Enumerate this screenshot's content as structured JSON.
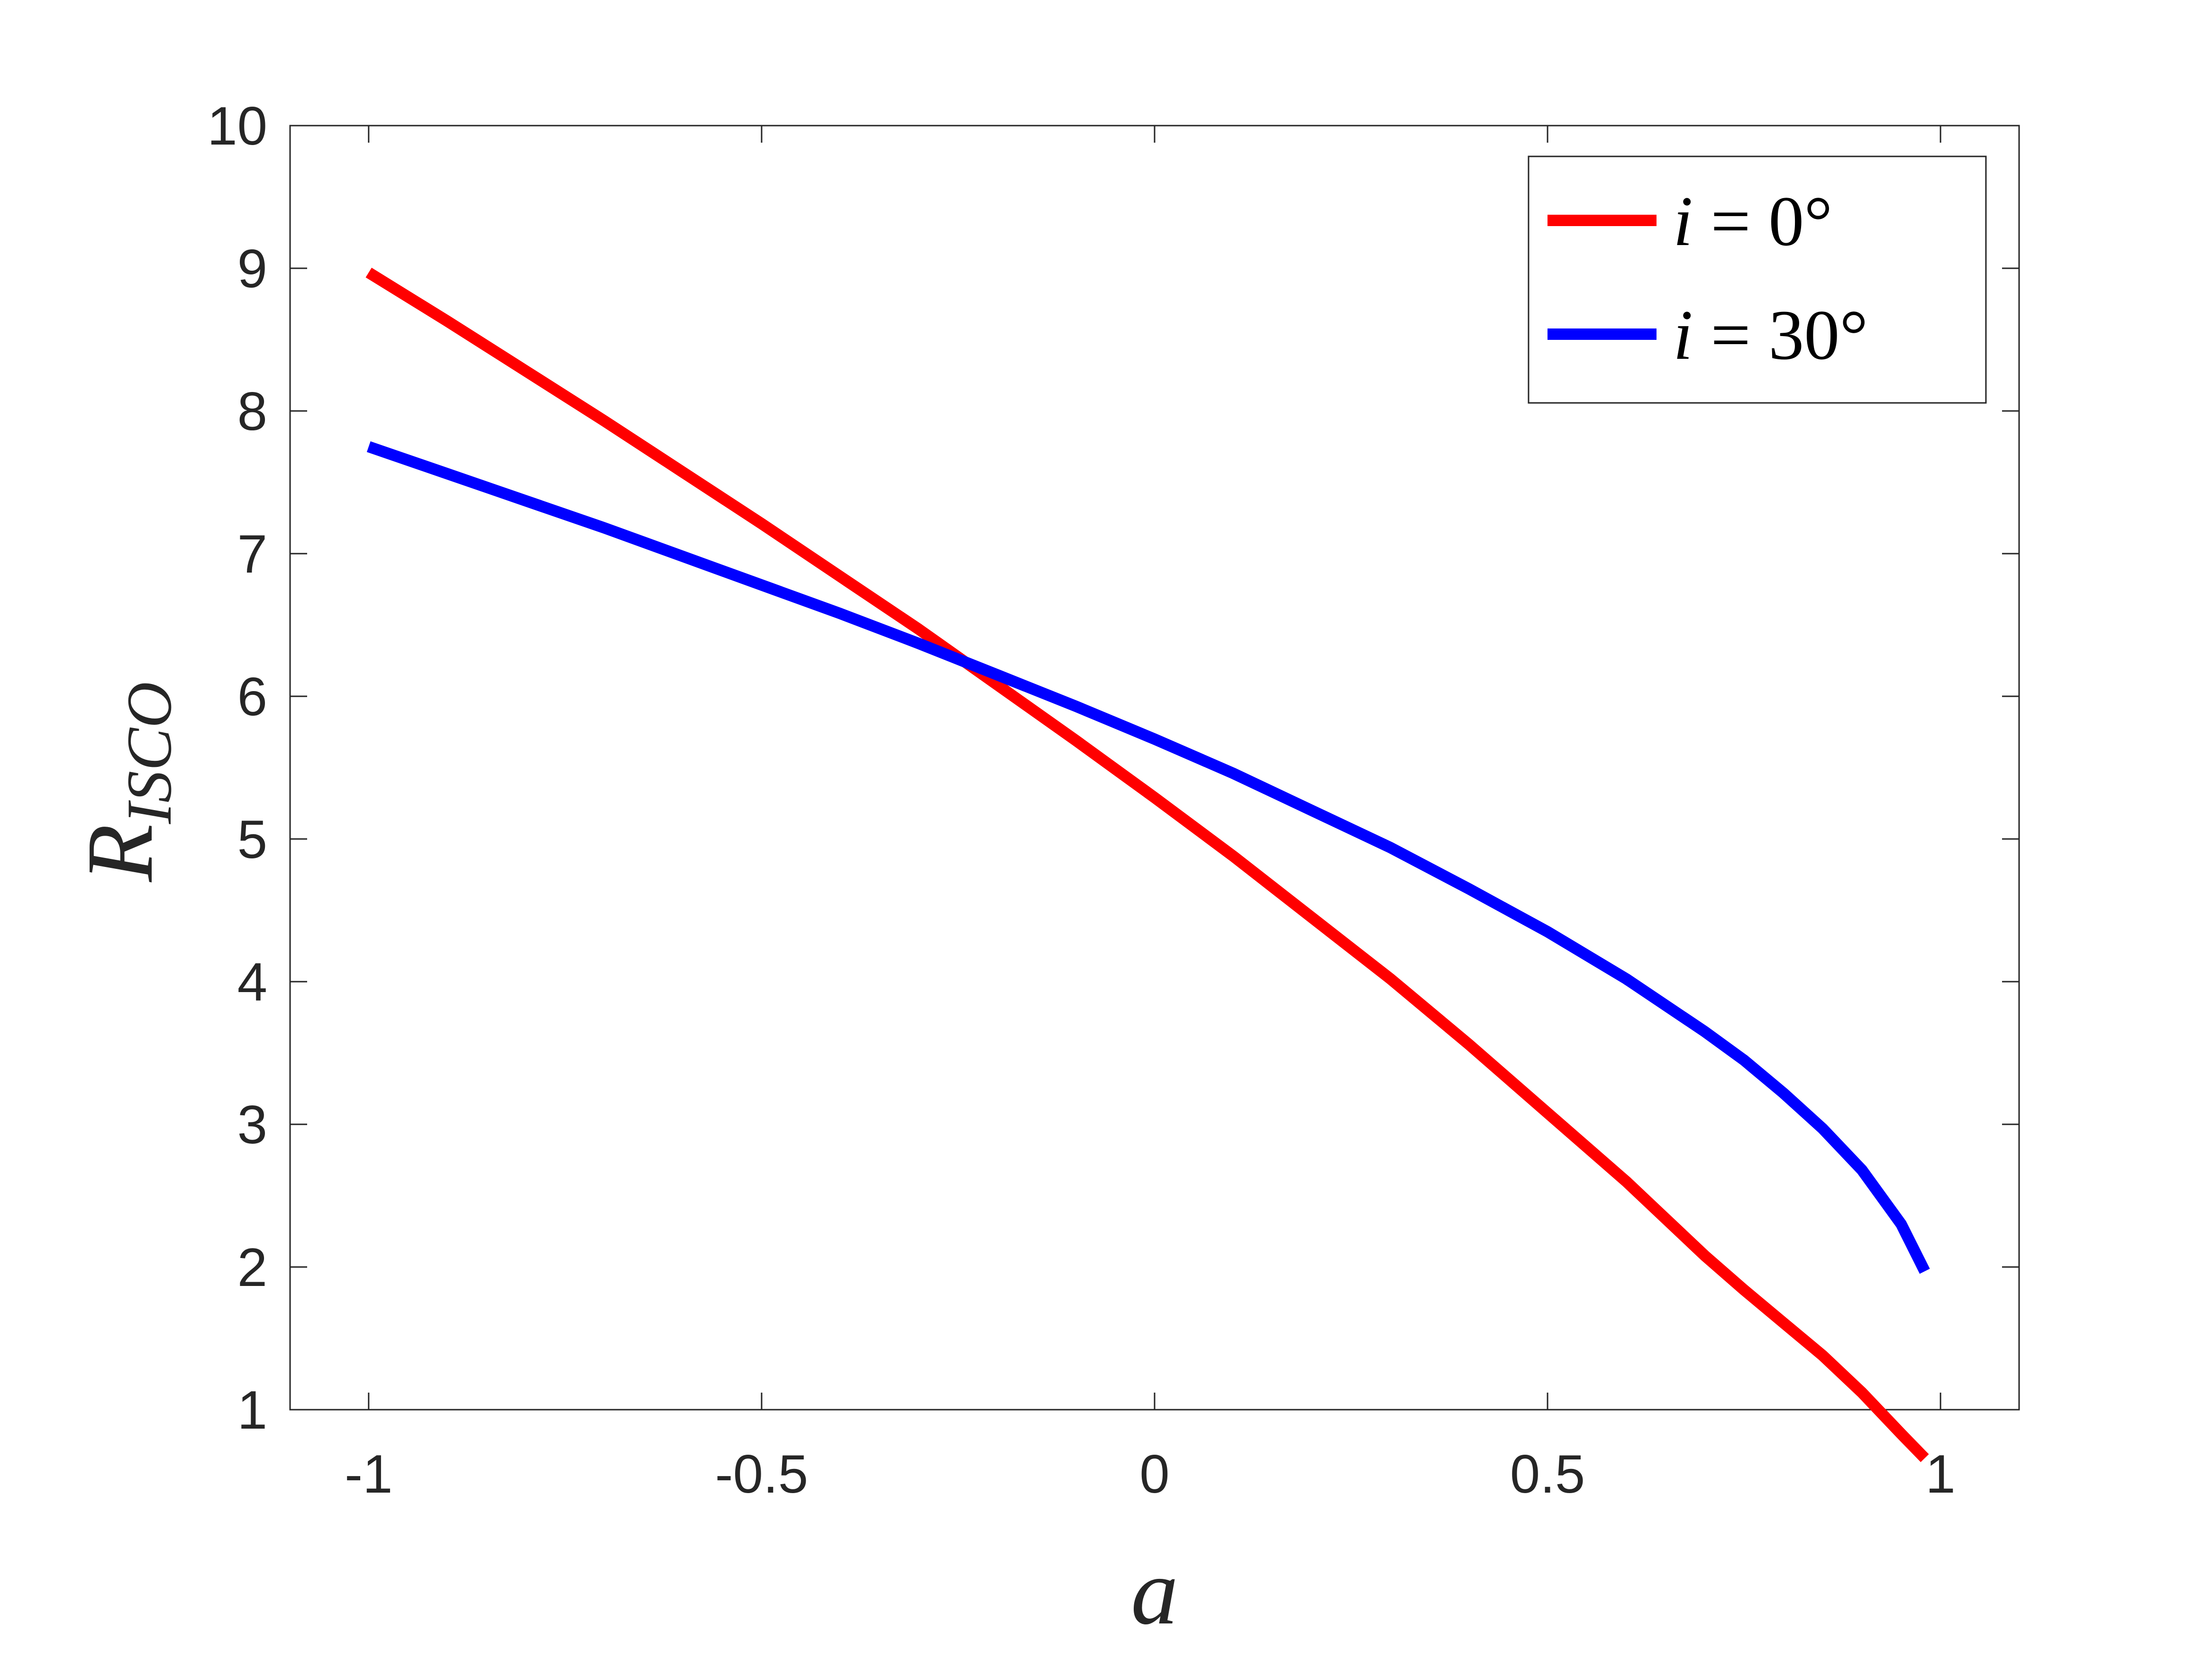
{
  "chart_data": {
    "type": "line",
    "xlabel": "a",
    "ylabel": {
      "base": "R",
      "sub": "ISCO"
    },
    "xlim": [
      -1.1,
      1.1
    ],
    "ylim": [
      1,
      10
    ],
    "xticks": [
      -1,
      -0.5,
      0,
      0.5,
      1
    ],
    "xtick_labels": [
      "-1",
      "-0.5",
      "0",
      "0.5",
      "1"
    ],
    "yticks": [
      1,
      2,
      3,
      4,
      5,
      6,
      7,
      8,
      9,
      10
    ],
    "ytick_labels": [
      "1",
      "2",
      "3",
      "4",
      "5",
      "6",
      "7",
      "8",
      "9",
      "10"
    ],
    "grid": false,
    "legend_position": "top-right",
    "series": [
      {
        "name": {
          "var": "i",
          "eq": " = ",
          "val": "0°"
        },
        "color": "#ff0000",
        "x": [
          -1,
          -0.9,
          -0.8,
          -0.7,
          -0.6,
          -0.5,
          -0.4,
          -0.3,
          -0.2,
          -0.1,
          0,
          0.1,
          0.2,
          0.3,
          0.4,
          0.5,
          0.6,
          0.7,
          0.75,
          0.8,
          0.85,
          0.9,
          0.95,
          0.98
        ],
        "y": [
          8.97,
          8.63,
          8.28,
          7.93,
          7.57,
          7.21,
          6.84,
          6.47,
          6.08,
          5.69,
          5.29,
          4.88,
          4.45,
          4.02,
          3.56,
          3.08,
          2.6,
          2.08,
          1.84,
          1.61,
          1.38,
          1.12,
          0.83,
          0.66
        ]
      },
      {
        "name": {
          "var": "i",
          "eq": " = ",
          "val": "30°"
        },
        "color": "#0000ff",
        "x": [
          -1,
          -0.9,
          -0.8,
          -0.7,
          -0.6,
          -0.5,
          -0.4,
          -0.3,
          -0.2,
          -0.1,
          0,
          0.1,
          0.2,
          0.3,
          0.4,
          0.5,
          0.6,
          0.7,
          0.75,
          0.8,
          0.85,
          0.9,
          0.95,
          0.98
        ],
        "y": [
          7.75,
          7.56,
          7.37,
          7.18,
          6.98,
          6.78,
          6.58,
          6.37,
          6.15,
          5.93,
          5.7,
          5.46,
          5.2,
          4.94,
          4.65,
          4.35,
          4.02,
          3.65,
          3.45,
          3.22,
          2.97,
          2.68,
          2.3,
          1.97
        ]
      }
    ]
  },
  "colors": {
    "axis": "#262626",
    "background": "#ffffff"
  }
}
